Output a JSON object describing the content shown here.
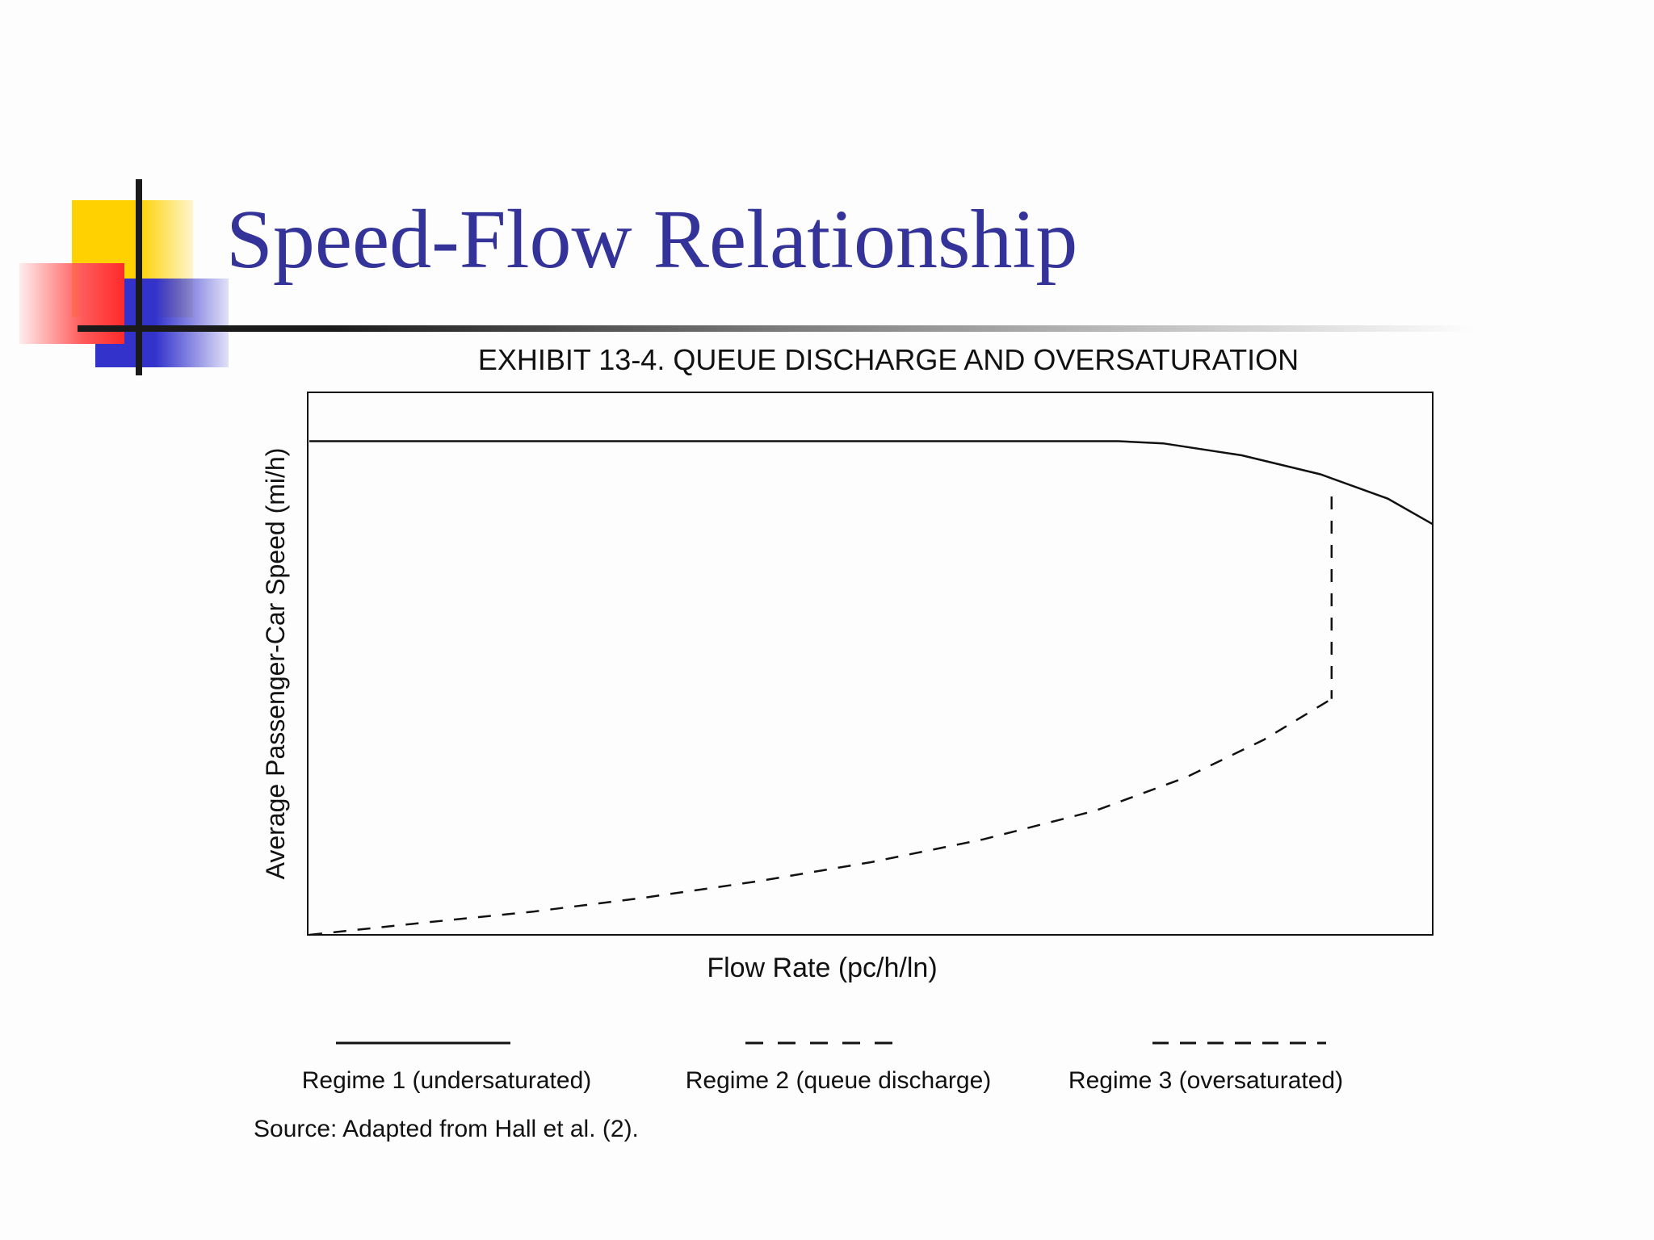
{
  "slide": {
    "title": "Speed-Flow Relationship"
  },
  "chart_data": {
    "type": "line",
    "title": "EXHIBIT 13-4.  QUEUE DISCHARGE AND OVERSATURATION",
    "xlabel": "Flow Rate (pc/h/ln)",
    "ylabel": "Average Passenger-Car Speed (mi/h)",
    "xlim": [
      0,
      100
    ],
    "ylim": [
      0,
      100
    ],
    "grid": false,
    "legend_position": "bottom",
    "series": [
      {
        "name": "Regime 1 (undersaturated)",
        "style": "solid",
        "x": [
          0,
          72,
          76,
          83,
          90,
          96,
          100
        ],
        "y": [
          91,
          91,
          90.6,
          88.4,
          84.9,
          80.4,
          75.7
        ]
      },
      {
        "name": "Regime 2 (queue discharge)",
        "style": "dashed",
        "x": [
          91,
          91
        ],
        "y": [
          80.8,
          43.5
        ]
      },
      {
        "name": "Regime 3 (oversaturated)",
        "style": "dashed",
        "x": [
          0,
          10,
          20,
          30,
          40,
          50,
          60,
          70,
          78,
          85,
          91
        ],
        "y": [
          0,
          2.2,
          4.3,
          6.9,
          9.9,
          13.4,
          17.6,
          22.9,
          29,
          36,
          43.5
        ]
      }
    ],
    "legend": [
      {
        "label": "Regime 1 (undersaturated)",
        "style": "solid"
      },
      {
        "label": "Regime 2 (queue discharge)",
        "style": "dash-short"
      },
      {
        "label": "Regime 3 (oversaturated)",
        "style": "dash-long"
      }
    ],
    "source": "Source: Adapted from Hall et al. (2)."
  }
}
